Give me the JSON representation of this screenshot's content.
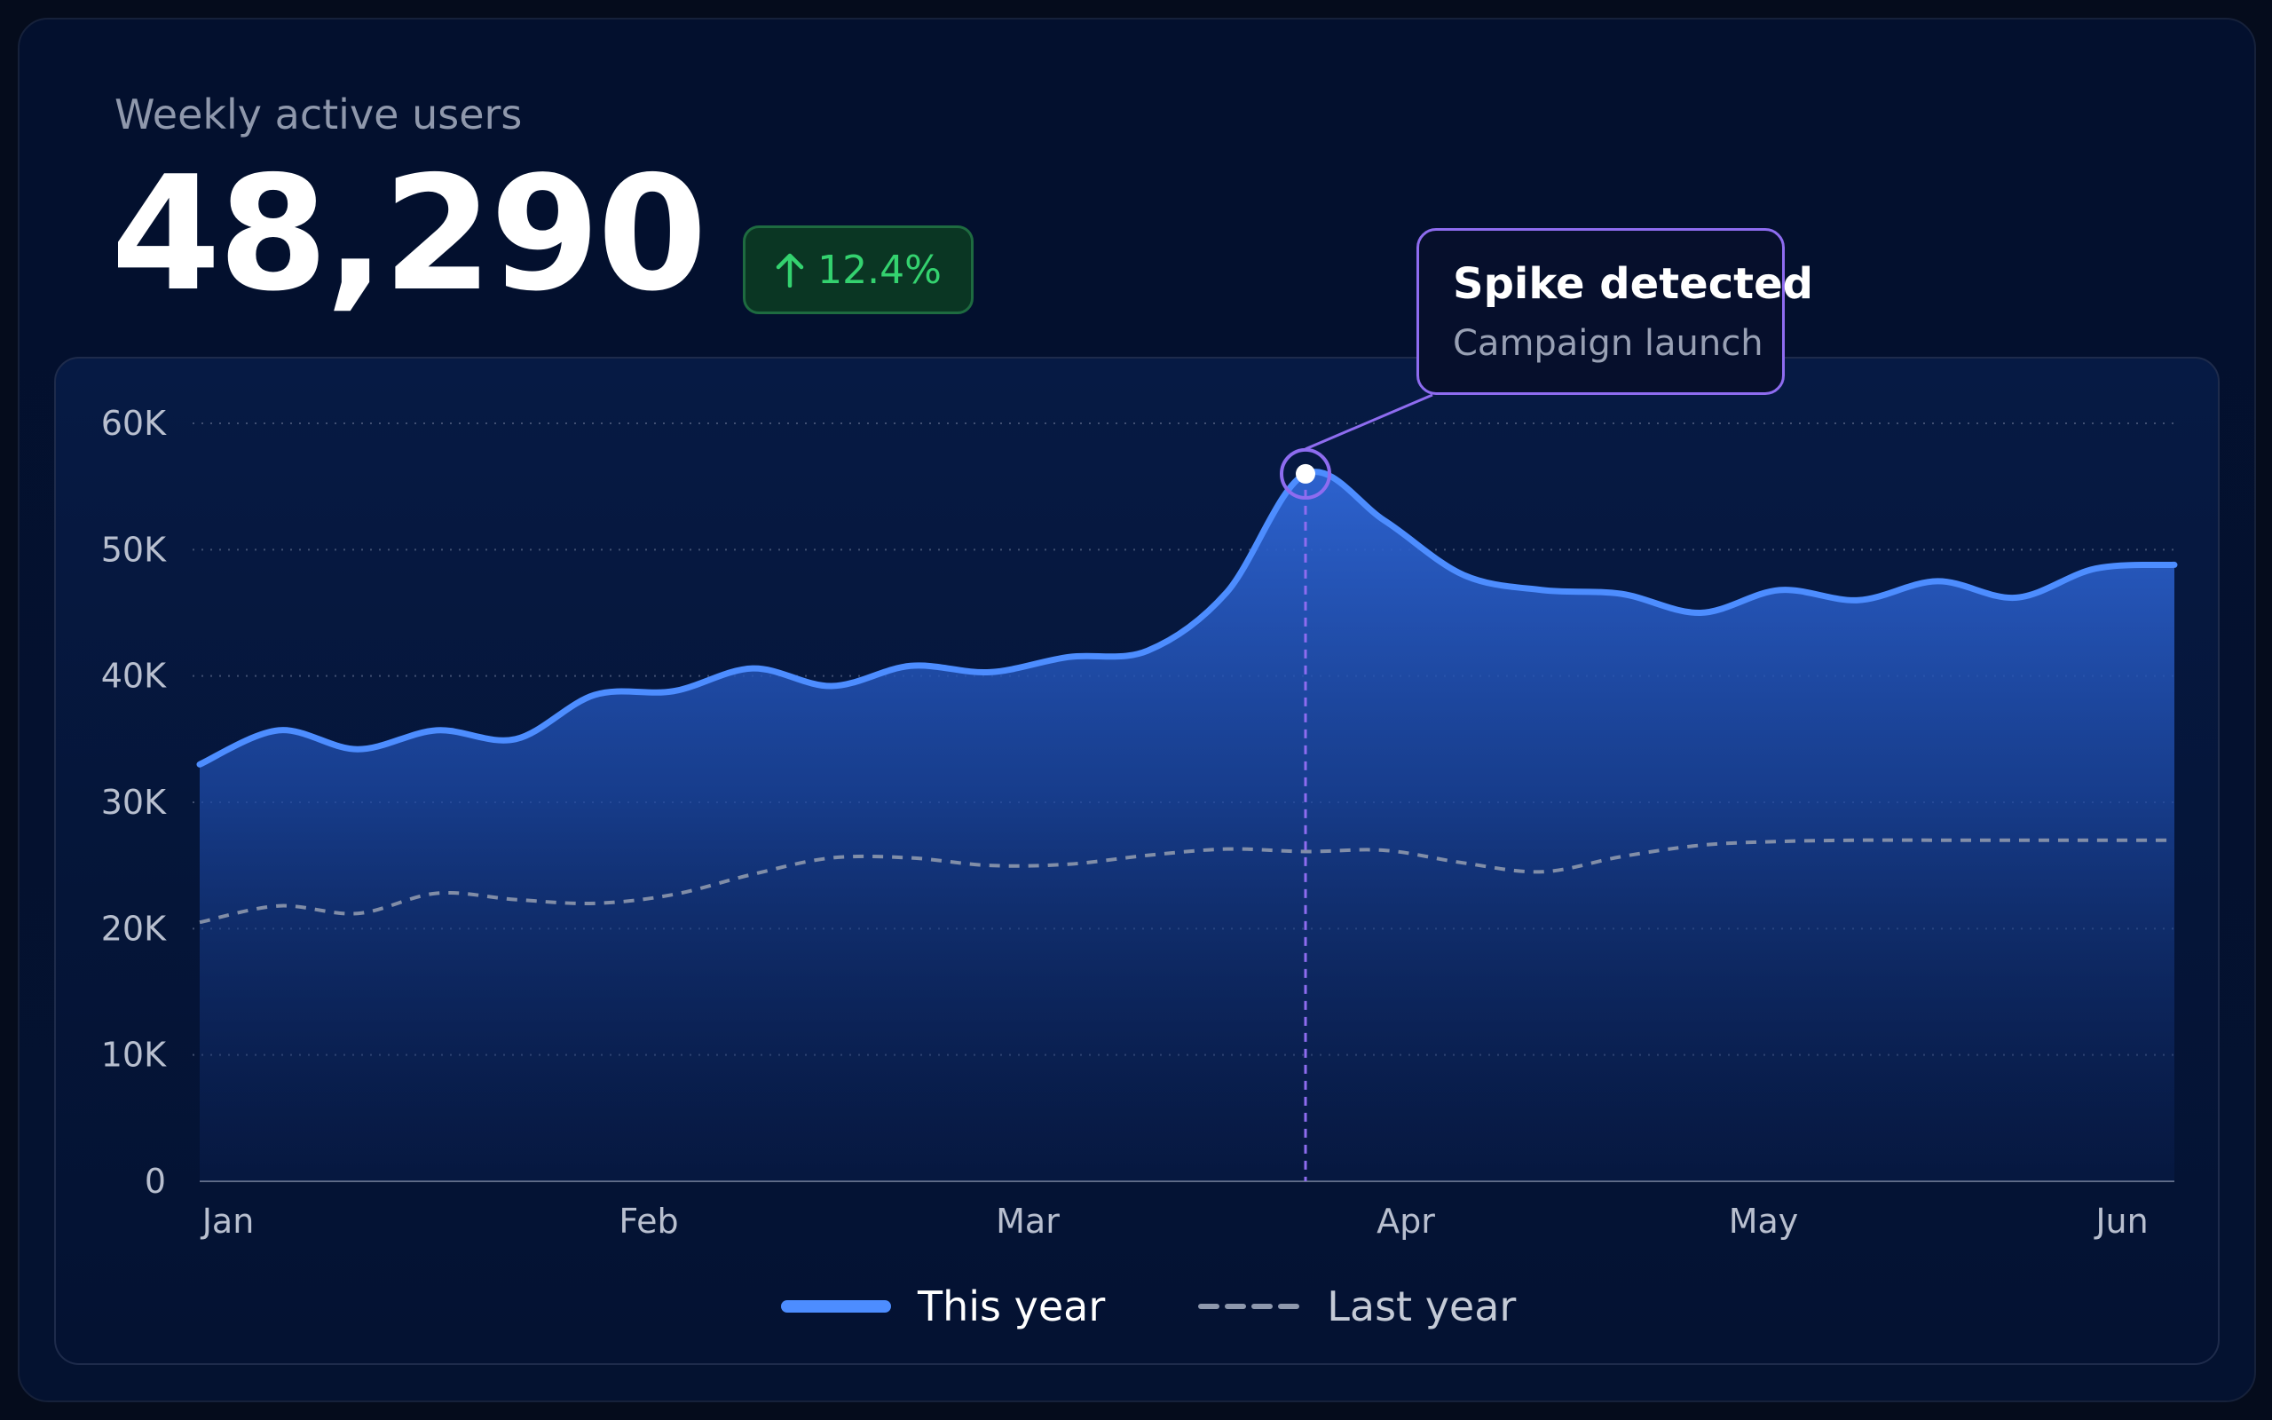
{
  "metric": {
    "title": "Weekly active users",
    "value": "48,290",
    "change": "12.4%",
    "change_direction": "up",
    "change_icon": "arrow-up-icon",
    "change_color": "#34d26f"
  },
  "colors": {
    "this_year": "#4d8dff",
    "last_year": "#8e98ad",
    "annotation": "#8e6cf0",
    "grid": "#5b6888"
  },
  "annotation": {
    "title": "Spike detected",
    "subtitle": "Campaign launch",
    "month": "Apr"
  },
  "legend": {
    "items": [
      {
        "label": "This year",
        "style": "solid"
      },
      {
        "label": "Last year",
        "style": "dashed"
      }
    ],
    "position": "bottom-center"
  },
  "chart_data": {
    "type": "area",
    "title": "Weekly active users",
    "xlabel": "",
    "ylabel": "",
    "ylim": [
      0,
      60000
    ],
    "yticks": [
      0,
      10000,
      20000,
      30000,
      40000,
      50000,
      60000
    ],
    "ytick_labels": [
      "0",
      "10K",
      "20K",
      "30K",
      "40K",
      "50K",
      "60K"
    ],
    "xtick_labels": [
      "Jan",
      "Feb",
      "Mar",
      "Apr",
      "May",
      "Jun"
    ],
    "grid": true,
    "x": [
      "Jan 1",
      "Jan 8",
      "Jan 15",
      "Jan 22",
      "Jan 29",
      "Feb 5",
      "Feb 12",
      "Feb 19",
      "Feb 26",
      "Mar 5",
      "Mar 12",
      "Mar 19",
      "Mar 26",
      "Apr 2",
      "Apr 9",
      "Apr 16",
      "Apr 23",
      "Apr 30",
      "May 7",
      "May 14",
      "May 21",
      "May 28",
      "Jun 4",
      "Jun 11",
      "Jun 18",
      "Jun 25"
    ],
    "series": [
      {
        "name": "This year",
        "values": [
          33000,
          35700,
          34200,
          35700,
          35000,
          38500,
          38800,
          40600,
          39200,
          40800,
          40300,
          41500,
          42000,
          46600,
          56000,
          52300,
          48000,
          46800,
          46500,
          45000,
          46800,
          46000,
          47500,
          46200,
          48500,
          48800
        ]
      },
      {
        "name": "Last year",
        "values": [
          20500,
          21800,
          21200,
          22800,
          22300,
          22000,
          22700,
          24300,
          25600,
          25600,
          25000,
          25100,
          25800,
          26300,
          26100,
          26200,
          25200,
          24500,
          25700,
          26600,
          26900,
          27000,
          27000,
          27000,
          27000,
          27000
        ]
      }
    ],
    "annotation_index": 14
  }
}
